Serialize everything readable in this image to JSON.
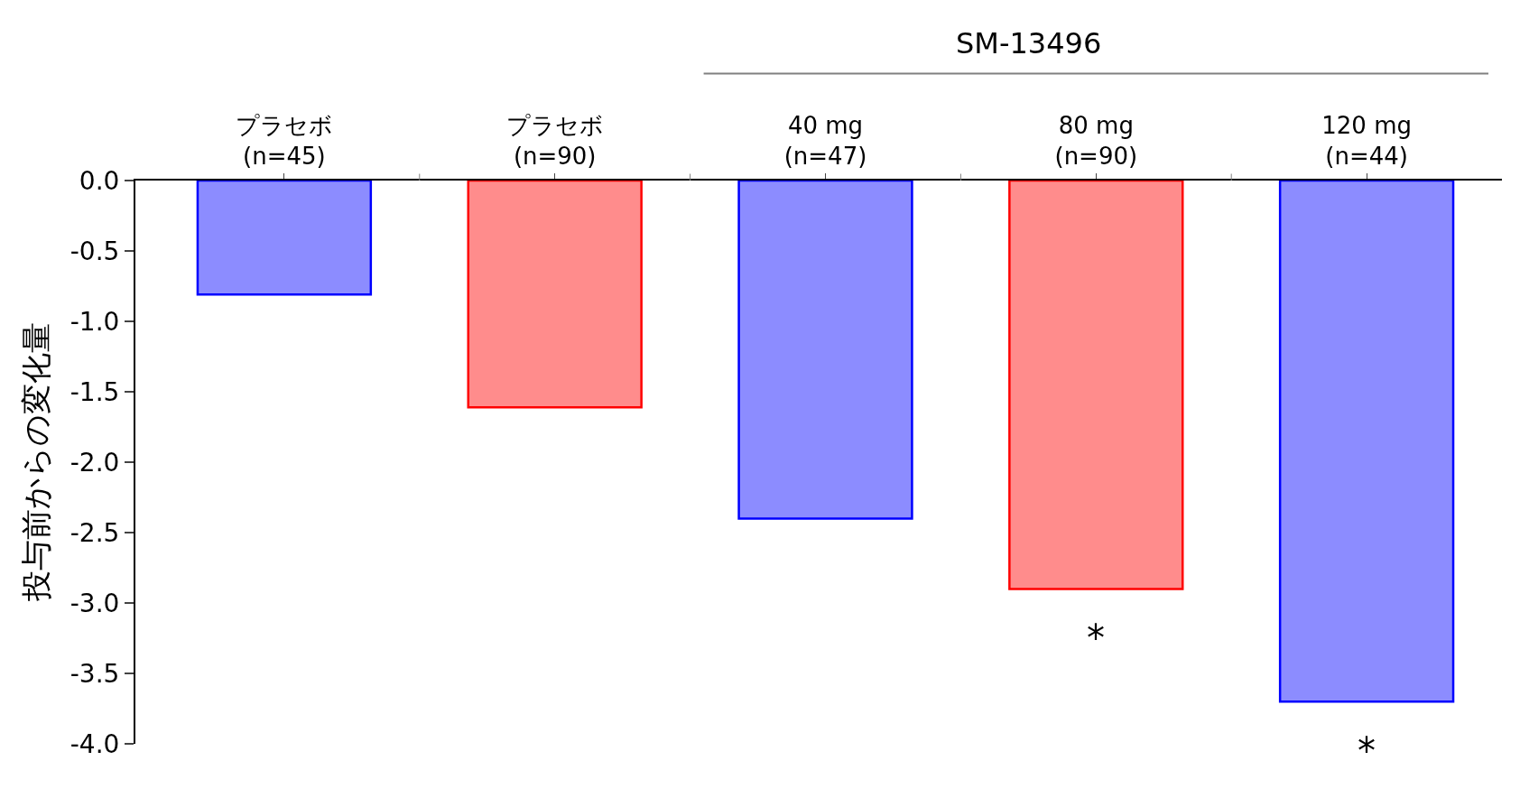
{
  "chart_data": {
    "type": "bar",
    "ylabel": "投与前からの変化量",
    "categories": [
      "プラセボ\n(n=45)",
      "プラセボ\n(n=90)",
      "40 mg\n(n=47)",
      "80 mg\n(n=90)",
      "120 mg\n(n=44)"
    ],
    "values": [
      -0.81,
      -1.61,
      -2.4,
      -2.9,
      -3.7
    ],
    "colors": [
      "#0000ff",
      "#ff0000",
      "#0000ff",
      "#ff0000",
      "#0000ff"
    ],
    "ylim": [
      -4.0,
      0.0
    ],
    "yticks": [
      {
        "value": 0,
        "label": "0.0"
      },
      {
        "value": -0.5,
        "label": "-0.5"
      },
      {
        "value": -1,
        "label": "-1.0"
      },
      {
        "value": -1.5,
        "label": "-1.5"
      },
      {
        "value": -2,
        "label": "-2.0"
      },
      {
        "value": -2.5,
        "label": "-2.5"
      },
      {
        "value": -3,
        "label": "-3.0"
      },
      {
        "value": -3.5,
        "label": "-3.5"
      },
      {
        "value": -4,
        "label": "-4.0"
      }
    ],
    "legend": false,
    "annotations": [
      "SM-13496",
      "*",
      "*"
    ]
  }
}
